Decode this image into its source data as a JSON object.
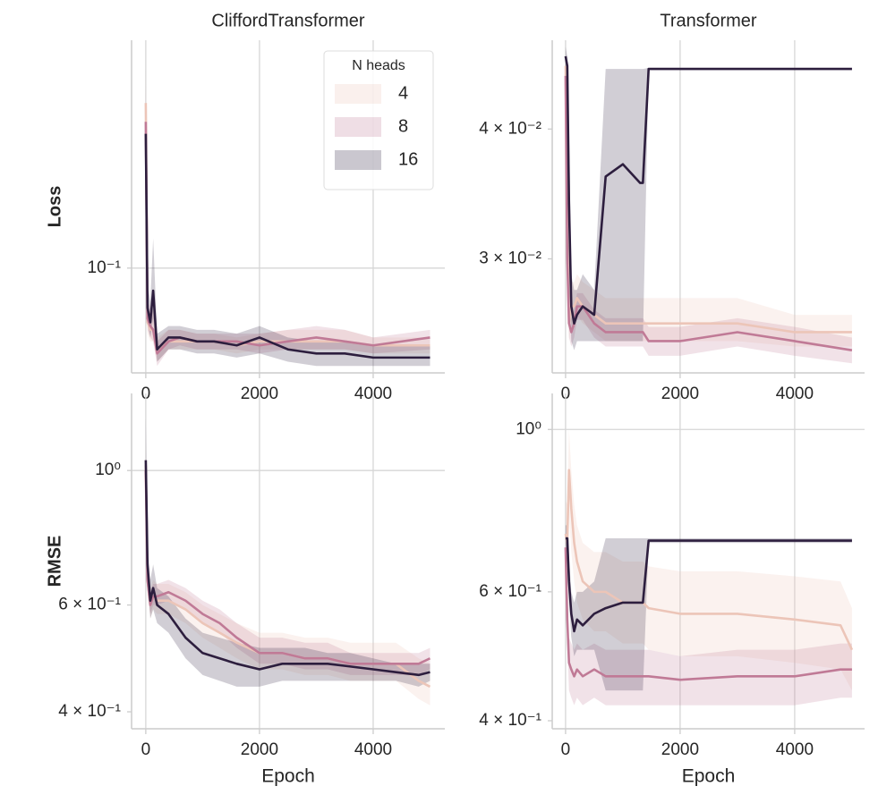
{
  "chart_data": [
    {
      "type": "line",
      "title": "CliffordTransformer",
      "y_label": "Loss",
      "log_y": true,
      "grid": true,
      "xlim": [
        -250,
        5260
      ],
      "xticks": [
        0,
        2000,
        4000
      ],
      "ylim": [
        0.0714,
        0.208
      ],
      "yticks": [
        {
          "value": 0.1,
          "label": "10⁻¹"
        }
      ],
      "legend": {
        "title": "N heads",
        "loc": "upper right"
      },
      "x": [
        0,
        30,
        80,
        130,
        200,
        400,
        600,
        900,
        1200,
        1600,
        2000,
        2500,
        3000,
        3500,
        4000,
        5000
      ],
      "series": [
        {
          "name": "4",
          "color": "#ecc5b8",
          "values": [
            0.17,
            0.084,
            0.082,
            0.082,
            0.077,
            0.079,
            0.079,
            0.079,
            0.079,
            0.078,
            0.079,
            0.079,
            0.079,
            0.079,
            0.078,
            0.078
          ],
          "lower": [
            0.15,
            0.081,
            0.079,
            0.079,
            0.074,
            0.077,
            0.077,
            0.077,
            0.077,
            0.076,
            0.077,
            0.077,
            0.077,
            0.077,
            0.076,
            0.076
          ],
          "upper": [
            0.19,
            0.089,
            0.086,
            0.088,
            0.08,
            0.082,
            0.082,
            0.081,
            0.081,
            0.08,
            0.081,
            0.082,
            0.082,
            0.082,
            0.08,
            0.08
          ]
        },
        {
          "name": "8",
          "color": "#c07a96",
          "values": [
            0.16,
            0.085,
            0.083,
            0.082,
            0.076,
            0.079,
            0.08,
            0.079,
            0.079,
            0.079,
            0.078,
            0.079,
            0.08,
            0.079,
            0.078,
            0.08
          ],
          "lower": [
            0.15,
            0.082,
            0.08,
            0.079,
            0.073,
            0.077,
            0.078,
            0.077,
            0.077,
            0.077,
            0.076,
            0.077,
            0.077,
            0.077,
            0.076,
            0.077
          ],
          "upper": [
            0.18,
            0.09,
            0.088,
            0.087,
            0.079,
            0.082,
            0.082,
            0.081,
            0.081,
            0.081,
            0.081,
            0.082,
            0.083,
            0.082,
            0.08,
            0.082
          ]
        },
        {
          "name": "16",
          "color": "#2d1e3e",
          "values": [
            0.154,
            0.088,
            0.084,
            0.093,
            0.077,
            0.08,
            0.08,
            0.079,
            0.079,
            0.078,
            0.08,
            0.077,
            0.076,
            0.076,
            0.075,
            0.075
          ],
          "lower": [
            0.14,
            0.084,
            0.08,
            0.085,
            0.074,
            0.077,
            0.077,
            0.076,
            0.076,
            0.075,
            0.076,
            0.074,
            0.073,
            0.073,
            0.073,
            0.073
          ],
          "upper": [
            0.17,
            0.095,
            0.09,
            0.11,
            0.081,
            0.083,
            0.083,
            0.082,
            0.082,
            0.081,
            0.083,
            0.08,
            0.079,
            0.079,
            0.078,
            0.078
          ]
        }
      ]
    },
    {
      "type": "line",
      "title": "Transformer",
      "log_y": true,
      "grid": true,
      "xlim": [
        -233,
        5220
      ],
      "xticks": [
        0,
        2000,
        4000
      ],
      "ylim": [
        0.0233,
        0.0487
      ],
      "yticks": [
        {
          "value": 0.03,
          "label": "3 × 10⁻²"
        },
        {
          "value": 0.04,
          "label": "4 × 10⁻²"
        }
      ],
      "x": [
        0,
        30,
        60,
        100,
        150,
        200,
        300,
        500,
        700,
        1000,
        1300,
        1350,
        1450,
        2000,
        3000,
        4000,
        5000
      ],
      "series": [
        {
          "name": "4",
          "color": "#ecc5b8",
          "values": [
            0.046,
            0.032,
            0.026,
            0.027,
            0.027,
            0.0275,
            0.027,
            0.0265,
            0.026,
            0.026,
            0.026,
            0.026,
            0.026,
            0.026,
            0.026,
            0.0255,
            0.0255
          ],
          "lower": [
            0.044,
            0.03,
            0.025,
            0.026,
            0.026,
            0.0265,
            0.026,
            0.0255,
            0.025,
            0.025,
            0.025,
            0.025,
            0.025,
            0.025,
            0.025,
            0.0247,
            0.0247
          ],
          "upper": [
            0.048,
            0.034,
            0.0275,
            0.0285,
            0.0285,
            0.029,
            0.0285,
            0.028,
            0.0275,
            0.0275,
            0.0275,
            0.0275,
            0.0275,
            0.0275,
            0.0275,
            0.0265,
            0.0265
          ]
        },
        {
          "name": "8",
          "color": "#c07a96",
          "values": [
            0.045,
            0.03,
            0.026,
            0.0255,
            0.026,
            0.027,
            0.027,
            0.026,
            0.0255,
            0.0255,
            0.0255,
            0.0255,
            0.025,
            0.025,
            0.0255,
            0.025,
            0.0245
          ],
          "lower": [
            0.043,
            0.029,
            0.0252,
            0.0247,
            0.0252,
            0.0262,
            0.0262,
            0.0252,
            0.0247,
            0.0247,
            0.0247,
            0.0247,
            0.0242,
            0.0242,
            0.0247,
            0.0242,
            0.0238
          ],
          "upper": [
            0.047,
            0.031,
            0.0268,
            0.0263,
            0.0268,
            0.0278,
            0.0278,
            0.0268,
            0.0263,
            0.0263,
            0.0263,
            0.0263,
            0.0258,
            0.0258,
            0.0263,
            0.0258,
            0.0252
          ]
        },
        {
          "name": "16",
          "color": "#2d1e3e",
          "values": [
            0.047,
            0.046,
            0.034,
            0.027,
            0.026,
            0.0265,
            0.027,
            0.0265,
            0.036,
            0.037,
            0.0355,
            0.0355,
            0.0457,
            0.0457,
            0.0457,
            0.0457,
            0.0457
          ],
          "lower": [
            0.045,
            0.044,
            0.029,
            0.025,
            0.0245,
            0.025,
            0.025,
            0.025,
            0.025,
            0.025,
            0.025,
            0.025,
            0.0456,
            0.0456,
            0.0456,
            0.0456,
            0.0456
          ],
          "upper": [
            0.048,
            0.047,
            0.04,
            0.029,
            0.028,
            0.028,
            0.029,
            0.028,
            0.0457,
            0.0457,
            0.0457,
            0.0457,
            0.0458,
            0.0458,
            0.0458,
            0.0458,
            0.0458
          ]
        }
      ]
    },
    {
      "type": "line",
      "y_label": "RMSE",
      "x_label": "Epoch",
      "log_y": true,
      "grid": true,
      "xlim": [
        -250,
        5260
      ],
      "xticks": [
        0,
        2000,
        4000
      ],
      "ylim": [
        0.375,
        1.34
      ],
      "yticks": [
        {
          "value": 0.4,
          "label": "4 × 10⁻¹"
        },
        {
          "value": 0.6,
          "label": "6 × 10⁻¹"
        },
        {
          "value": 1,
          "label": "10⁰"
        }
      ],
      "x": [
        0,
        30,
        80,
        130,
        200,
        400,
        700,
        1000,
        1300,
        1600,
        2000,
        2400,
        2800,
        3200,
        3600,
        4000,
        4400,
        4800,
        5000
      ],
      "series": [
        {
          "name": "4",
          "color": "#ecc5b8",
          "values": [
            1.02,
            0.66,
            0.6,
            0.62,
            0.61,
            0.61,
            0.59,
            0.56,
            0.54,
            0.52,
            0.5,
            0.5,
            0.49,
            0.49,
            0.48,
            0.48,
            0.48,
            0.45,
            0.44
          ],
          "lower": [
            0.98,
            0.63,
            0.57,
            0.59,
            0.58,
            0.58,
            0.56,
            0.53,
            0.51,
            0.49,
            0.47,
            0.47,
            0.46,
            0.46,
            0.45,
            0.45,
            0.45,
            0.42,
            0.41
          ],
          "upper": [
            1.1,
            0.7,
            0.64,
            0.66,
            0.65,
            0.65,
            0.63,
            0.6,
            0.58,
            0.56,
            0.54,
            0.54,
            0.53,
            0.53,
            0.52,
            0.52,
            0.52,
            0.49,
            0.48
          ]
        },
        {
          "name": "8",
          "color": "#c07a96",
          "values": [
            1.0,
            0.66,
            0.6,
            0.62,
            0.62,
            0.63,
            0.61,
            0.58,
            0.56,
            0.53,
            0.5,
            0.5,
            0.49,
            0.49,
            0.48,
            0.48,
            0.48,
            0.48,
            0.49
          ],
          "lower": [
            0.97,
            0.63,
            0.58,
            0.6,
            0.6,
            0.61,
            0.59,
            0.56,
            0.54,
            0.51,
            0.48,
            0.48,
            0.47,
            0.47,
            0.46,
            0.46,
            0.46,
            0.46,
            0.47
          ],
          "upper": [
            1.06,
            0.69,
            0.63,
            0.65,
            0.65,
            0.66,
            0.64,
            0.61,
            0.59,
            0.56,
            0.53,
            0.53,
            0.52,
            0.52,
            0.5,
            0.5,
            0.5,
            0.5,
            0.51
          ]
        },
        {
          "name": "16",
          "color": "#2d1e3e",
          "values": [
            1.04,
            0.7,
            0.61,
            0.64,
            0.6,
            0.58,
            0.53,
            0.5,
            0.49,
            0.48,
            0.47,
            0.48,
            0.48,
            0.48,
            0.475,
            0.47,
            0.465,
            0.46,
            0.465
          ],
          "lower": [
            0.99,
            0.66,
            0.57,
            0.59,
            0.56,
            0.54,
            0.49,
            0.46,
            0.45,
            0.44,
            0.44,
            0.45,
            0.45,
            0.45,
            0.45,
            0.45,
            0.45,
            0.44,
            0.45
          ],
          "upper": [
            1.22,
            0.76,
            0.66,
            0.7,
            0.64,
            0.62,
            0.57,
            0.54,
            0.53,
            0.52,
            0.51,
            0.51,
            0.51,
            0.5,
            0.5,
            0.49,
            0.48,
            0.48,
            0.48
          ]
        }
      ]
    },
    {
      "type": "line",
      "x_label": "Epoch",
      "log_y": true,
      "grid": true,
      "xlim": [
        -233,
        5220
      ],
      "xticks": [
        0,
        2000,
        4000
      ],
      "ylim": [
        0.39,
        1.12
      ],
      "yticks": [
        {
          "value": 0.4,
          "label": "4 × 10⁻¹"
        },
        {
          "value": 0.6,
          "label": "6 × 10⁻¹"
        },
        {
          "value": 1,
          "label": "10⁰"
        }
      ],
      "x": [
        0,
        30,
        60,
        100,
        150,
        200,
        300,
        500,
        700,
        1000,
        1350,
        1450,
        2000,
        3000,
        4000,
        4800,
        5000
      ],
      "series": [
        {
          "name": "4",
          "color": "#ecc5b8",
          "values": [
            0.72,
            0.7,
            0.88,
            0.78,
            0.7,
            0.66,
            0.62,
            0.6,
            0.6,
            0.58,
            0.58,
            0.57,
            0.56,
            0.56,
            0.55,
            0.54,
            0.5
          ],
          "lower": [
            0.65,
            0.62,
            0.77,
            0.68,
            0.62,
            0.58,
            0.55,
            0.53,
            0.53,
            0.51,
            0.51,
            0.5,
            0.49,
            0.49,
            0.48,
            0.47,
            0.44
          ],
          "upper": [
            0.8,
            0.79,
            1.0,
            0.88,
            0.79,
            0.74,
            0.7,
            0.68,
            0.68,
            0.66,
            0.66,
            0.65,
            0.64,
            0.64,
            0.63,
            0.62,
            0.57
          ]
        },
        {
          "name": "8",
          "color": "#c07a96",
          "values": [
            0.69,
            0.55,
            0.48,
            0.47,
            0.46,
            0.47,
            0.46,
            0.47,
            0.46,
            0.46,
            0.46,
            0.46,
            0.455,
            0.46,
            0.46,
            0.47,
            0.47
          ],
          "lower": [
            0.66,
            0.51,
            0.44,
            0.43,
            0.42,
            0.43,
            0.42,
            0.43,
            0.42,
            0.42,
            0.42,
            0.42,
            0.42,
            0.42,
            0.42,
            0.43,
            0.43
          ],
          "upper": [
            0.72,
            0.6,
            0.52,
            0.51,
            0.5,
            0.51,
            0.5,
            0.51,
            0.5,
            0.5,
            0.5,
            0.5,
            0.49,
            0.5,
            0.5,
            0.51,
            0.51
          ]
        },
        {
          "name": "16",
          "color": "#2d1e3e",
          "values": [
            0.71,
            0.71,
            0.62,
            0.56,
            0.53,
            0.55,
            0.54,
            0.56,
            0.57,
            0.58,
            0.58,
            0.705,
            0.705,
            0.705,
            0.705,
            0.705,
            0.705
          ],
          "lower": [
            0.68,
            0.68,
            0.58,
            0.52,
            0.49,
            0.5,
            0.5,
            0.5,
            0.44,
            0.44,
            0.44,
            0.7,
            0.7,
            0.7,
            0.7,
            0.7,
            0.7
          ],
          "upper": [
            0.74,
            0.74,
            0.67,
            0.6,
            0.58,
            0.6,
            0.6,
            0.62,
            0.71,
            0.71,
            0.71,
            0.71,
            0.71,
            0.71,
            0.71,
            0.71,
            0.71
          ]
        }
      ]
    }
  ]
}
